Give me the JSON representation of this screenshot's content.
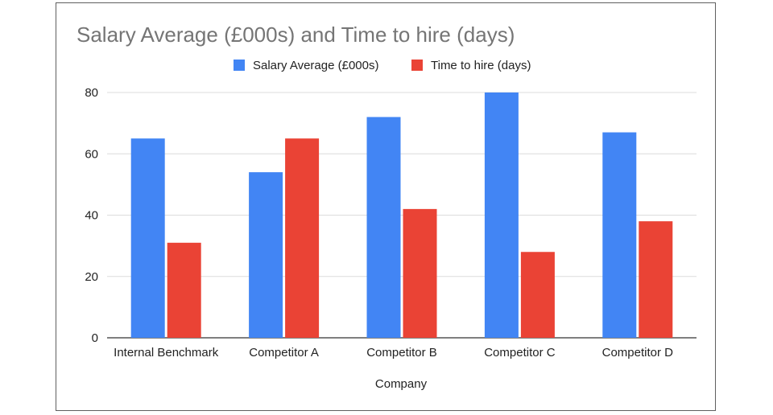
{
  "chart_data": {
    "type": "bar",
    "title": "Salary Average (£000s) and Time to hire (days)",
    "xlabel": "Company",
    "ylabel": "",
    "categories": [
      "Internal Benchmark",
      "Competitor A",
      "Competitor B",
      "Competitor C",
      "Competitor D"
    ],
    "series": [
      {
        "name": "Salary Average (£000s)",
        "color": "#4285f4",
        "values": [
          65,
          54,
          72,
          80,
          67
        ]
      },
      {
        "name": "Time to hire (days)",
        "color": "#ea4335",
        "values": [
          31,
          65,
          42,
          28,
          38
        ]
      }
    ],
    "ylim": [
      0,
      80
    ],
    "yticks": [
      0,
      20,
      40,
      60,
      80
    ],
    "grid": true,
    "legend_position": "top"
  }
}
